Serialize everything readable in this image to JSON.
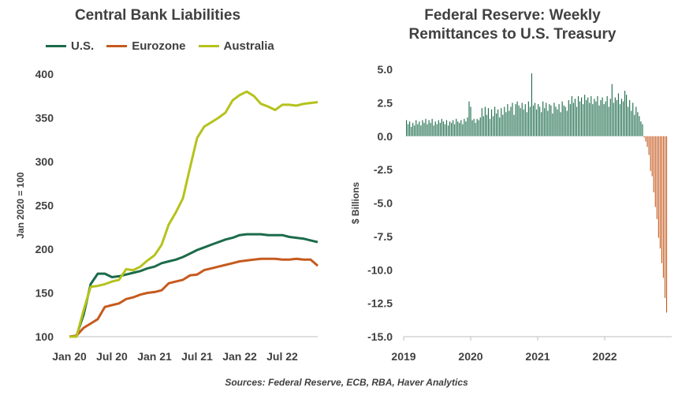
{
  "source": "Sources: Federal Reserve, ECB, RBA, Haver Analytics",
  "chart_data": [
    {
      "type": "line",
      "title": "Central Bank Liabilities",
      "ylabel": "Jan 2020 = 100",
      "ylim": [
        100,
        400
      ],
      "yticks": [
        "100",
        "150",
        "200",
        "250",
        "300",
        "350",
        "400"
      ],
      "xlim": [
        0,
        35
      ],
      "xticks": [
        {
          "label": "Jan 20",
          "x": 0
        },
        {
          "label": "Jul 20",
          "x": 6
        },
        {
          "label": "Jan 21",
          "x": 12
        },
        {
          "label": "Jul 21",
          "x": 18
        },
        {
          "label": "Jan 22",
          "x": 24
        },
        {
          "label": "Jul 22",
          "x": 30
        }
      ],
      "legend_position": "top",
      "series": [
        {
          "name": "U.S.",
          "color": "#1b6b4a",
          "values": [
            100,
            101,
            125,
            160,
            172,
            172,
            168,
            169,
            171,
            173,
            175,
            178,
            180,
            184,
            186,
            188,
            191,
            195,
            199,
            202,
            205,
            208,
            211,
            213,
            216,
            217,
            217,
            217,
            216,
            216,
            216,
            214,
            213,
            212,
            210,
            208
          ]
        },
        {
          "name": "Eurozone",
          "color": "#c65a1e",
          "values": [
            100,
            101,
            110,
            115,
            120,
            134,
            136,
            138,
            143,
            145,
            148,
            150,
            151,
            153,
            161,
            163,
            165,
            170,
            171,
            176,
            178,
            180,
            182,
            184,
            186,
            187,
            188,
            189,
            189,
            189,
            188,
            188,
            189,
            188,
            188,
            181
          ]
        },
        {
          "name": "Australia",
          "color": "#b5c21b",
          "values": [
            100,
            100,
            130,
            157,
            158,
            160,
            163,
            165,
            177,
            176,
            180,
            187,
            193,
            205,
            228,
            242,
            258,
            293,
            327,
            340,
            345,
            350,
            356,
            370,
            376,
            380,
            375,
            366,
            363,
            359,
            365,
            365,
            364,
            366,
            367,
            368
          ]
        }
      ]
    },
    {
      "type": "bar",
      "title": "Federal Reserve: Weekly Remittances to U.S. Treasury",
      "ylabel": "$ Billions",
      "ylim": [
        -15,
        5
      ],
      "yticks": [
        "5.0",
        "2.5",
        "0.0",
        "-2.5",
        "-5.0",
        "-7.5",
        "-10.0",
        "-12.5",
        "-15.0"
      ],
      "xlim": [
        2019,
        2023
      ],
      "xticks": [
        {
          "label": "2019",
          "x": 2019
        },
        {
          "label": "2020",
          "x": 2020
        },
        {
          "label": "2021",
          "x": 2021
        },
        {
          "label": "2022",
          "x": 2022
        }
      ],
      "positive_color": "#1b6b4a",
      "negative_color": "#c65a1e",
      "values": [
        1.2,
        0.9,
        1.1,
        0.7,
        1.0,
        0.8,
        1.2,
        0.9,
        1.1,
        0.8,
        1.2,
        1.0,
        1.3,
        0.9,
        1.2,
        1.0,
        1.3,
        0.8,
        1.1,
        0.9,
        1.2,
        1.0,
        1.3,
        1.1,
        0.9,
        1.2,
        0.8,
        1.1,
        1.0,
        1.2,
        0.9,
        1.3,
        1.1,
        1.0,
        1.2,
        0.9,
        1.3,
        1.1,
        1.4,
        2.6,
        2.2,
        1.2,
        1.3,
        1.0,
        1.3,
        1.2,
        1.4,
        2.1,
        1.5,
        2.2,
        1.6,
        2.1,
        1.3,
        2.0,
        1.5,
        2.2,
        1.7,
        2.0,
        1.4,
        2.1,
        1.6,
        2.2,
        1.8,
        2.4,
        1.9,
        2.2,
        2.5,
        1.6,
        2.4,
        2.6,
        2.3,
        2.1,
        2.5,
        2.0,
        2.4,
        1.8,
        2.6,
        2.2,
        4.7,
        2.3,
        2.5,
        2.0,
        2.4,
        2.2,
        1.8,
        2.6,
        2.1,
        2.5,
        1.9,
        2.4,
        2.3,
        1.7,
        2.5,
        2.2,
        2.0,
        2.4,
        1.8,
        2.6,
        2.3,
        2.2,
        1.9,
        2.7,
        2.4,
        3.0,
        2.5,
        2.8,
        2.2,
        3.0,
        2.6,
        2.9,
        2.4,
        3.1,
        2.7,
        2.9,
        2.5,
        3.0,
        2.4,
        2.8,
        2.6,
        3.0,
        2.3,
        2.7,
        2.9,
        2.4,
        2.6,
        3.0,
        2.2,
        2.8,
        3.9,
        2.5,
        2.9,
        2.7,
        3.2,
        2.4,
        2.8,
        2.6,
        3.4,
        3.1,
        2.2,
        2.7,
        1.9,
        2.5,
        1.6,
        2.2,
        1.8,
        1.5,
        1.1,
        0.9,
        -0.1,
        -0.4,
        -0.8,
        -1.4,
        -2.6,
        -3.0,
        -4.2,
        -5.3,
        -6.2,
        -7.6,
        -8.4,
        -9.5,
        -10.6,
        -12.1,
        -13.2
      ]
    }
  ]
}
